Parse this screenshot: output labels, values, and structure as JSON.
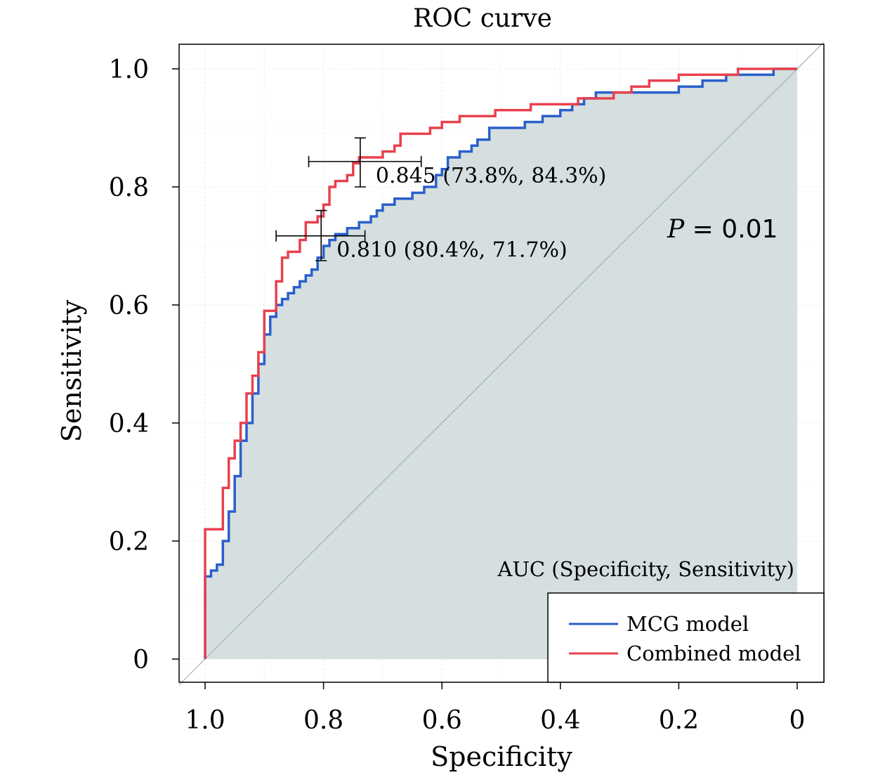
{
  "chart_data": {
    "type": "line",
    "title": "ROC curve",
    "xlabel": "Specificity",
    "ylabel": "Sensitivity",
    "x_reversed": true,
    "xlim": [
      1.0,
      0.0
    ],
    "ylim": [
      0.0,
      1.0
    ],
    "x_ticks": [
      {
        "value": 1.0,
        "label": "1.0"
      },
      {
        "value": 0.8,
        "label": "0.8"
      },
      {
        "value": 0.6,
        "label": "0.6"
      },
      {
        "value": 0.4,
        "label": "0.4"
      },
      {
        "value": 0.2,
        "label": "0.2"
      },
      {
        "value": 0.0,
        "label": "0"
      }
    ],
    "y_ticks": [
      {
        "value": 0.0,
        "label": "0"
      },
      {
        "value": 0.2,
        "label": "0.2"
      },
      {
        "value": 0.4,
        "label": "0.4"
      },
      {
        "value": 0.6,
        "label": "0.6"
      },
      {
        "value": 0.8,
        "label": "0.8"
      },
      {
        "value": 1.0,
        "label": "1.0"
      }
    ],
    "grid": true,
    "legend_position": "bottom-right",
    "auc_caption": "AUC (Specificity, Sensitivity)",
    "p_value": {
      "symbol": "P",
      "rest": " = 0.01"
    },
    "fill_color": "#d5dfdf",
    "diagonal_color": "#a0b0b0",
    "series": [
      {
        "name": "MCG model",
        "color": "#2a5fcc",
        "points": [
          [
            1.0,
            0.0
          ],
          [
            1.0,
            0.14
          ],
          [
            0.99,
            0.14
          ],
          [
            0.99,
            0.15
          ],
          [
            0.98,
            0.15
          ],
          [
            0.98,
            0.16
          ],
          [
            0.97,
            0.16
          ],
          [
            0.97,
            0.2
          ],
          [
            0.96,
            0.2
          ],
          [
            0.96,
            0.25
          ],
          [
            0.95,
            0.25
          ],
          [
            0.95,
            0.31
          ],
          [
            0.94,
            0.31
          ],
          [
            0.94,
            0.37
          ],
          [
            0.93,
            0.37
          ],
          [
            0.93,
            0.4
          ],
          [
            0.92,
            0.4
          ],
          [
            0.92,
            0.45
          ],
          [
            0.91,
            0.45
          ],
          [
            0.91,
            0.5
          ],
          [
            0.9,
            0.5
          ],
          [
            0.9,
            0.55
          ],
          [
            0.89,
            0.55
          ],
          [
            0.89,
            0.58
          ],
          [
            0.88,
            0.58
          ],
          [
            0.88,
            0.6
          ],
          [
            0.87,
            0.6
          ],
          [
            0.87,
            0.61
          ],
          [
            0.86,
            0.61
          ],
          [
            0.86,
            0.62
          ],
          [
            0.85,
            0.62
          ],
          [
            0.85,
            0.63
          ],
          [
            0.84,
            0.63
          ],
          [
            0.84,
            0.64
          ],
          [
            0.83,
            0.64
          ],
          [
            0.83,
            0.65
          ],
          [
            0.82,
            0.65
          ],
          [
            0.82,
            0.66
          ],
          [
            0.81,
            0.66
          ],
          [
            0.81,
            0.68
          ],
          [
            0.8,
            0.68
          ],
          [
            0.8,
            0.7
          ],
          [
            0.79,
            0.7
          ],
          [
            0.79,
            0.71
          ],
          [
            0.78,
            0.71
          ],
          [
            0.78,
            0.72
          ],
          [
            0.76,
            0.72
          ],
          [
            0.76,
            0.73
          ],
          [
            0.74,
            0.73
          ],
          [
            0.74,
            0.74
          ],
          [
            0.72,
            0.74
          ],
          [
            0.72,
            0.75
          ],
          [
            0.71,
            0.75
          ],
          [
            0.71,
            0.76
          ],
          [
            0.7,
            0.76
          ],
          [
            0.7,
            0.77
          ],
          [
            0.68,
            0.77
          ],
          [
            0.68,
            0.78
          ],
          [
            0.65,
            0.78
          ],
          [
            0.65,
            0.79
          ],
          [
            0.63,
            0.79
          ],
          [
            0.63,
            0.8
          ],
          [
            0.61,
            0.8
          ],
          [
            0.61,
            0.82
          ],
          [
            0.6,
            0.82
          ],
          [
            0.6,
            0.83
          ],
          [
            0.59,
            0.83
          ],
          [
            0.59,
            0.85
          ],
          [
            0.57,
            0.85
          ],
          [
            0.57,
            0.86
          ],
          [
            0.55,
            0.86
          ],
          [
            0.55,
            0.87
          ],
          [
            0.54,
            0.87
          ],
          [
            0.54,
            0.88
          ],
          [
            0.52,
            0.88
          ],
          [
            0.52,
            0.9
          ],
          [
            0.46,
            0.9
          ],
          [
            0.46,
            0.91
          ],
          [
            0.43,
            0.91
          ],
          [
            0.43,
            0.92
          ],
          [
            0.4,
            0.92
          ],
          [
            0.4,
            0.93
          ],
          [
            0.38,
            0.93
          ],
          [
            0.38,
            0.94
          ],
          [
            0.36,
            0.94
          ],
          [
            0.36,
            0.95
          ],
          [
            0.34,
            0.95
          ],
          [
            0.34,
            0.96
          ],
          [
            0.2,
            0.96
          ],
          [
            0.2,
            0.97
          ],
          [
            0.16,
            0.97
          ],
          [
            0.16,
            0.98
          ],
          [
            0.12,
            0.98
          ],
          [
            0.12,
            0.99
          ],
          [
            0.04,
            0.99
          ],
          [
            0.04,
            1.0
          ],
          [
            0.0,
            1.0
          ]
        ]
      },
      {
        "name": "Combined model",
        "color": "#e8414e",
        "points": [
          [
            1.0,
            0.0
          ],
          [
            1.0,
            0.22
          ],
          [
            0.97,
            0.22
          ],
          [
            0.97,
            0.29
          ],
          [
            0.96,
            0.29
          ],
          [
            0.96,
            0.34
          ],
          [
            0.95,
            0.34
          ],
          [
            0.95,
            0.37
          ],
          [
            0.94,
            0.37
          ],
          [
            0.94,
            0.4
          ],
          [
            0.93,
            0.4
          ],
          [
            0.93,
            0.45
          ],
          [
            0.92,
            0.45
          ],
          [
            0.92,
            0.48
          ],
          [
            0.91,
            0.48
          ],
          [
            0.91,
            0.52
          ],
          [
            0.9,
            0.52
          ],
          [
            0.9,
            0.59
          ],
          [
            0.88,
            0.59
          ],
          [
            0.88,
            0.64
          ],
          [
            0.87,
            0.64
          ],
          [
            0.87,
            0.68
          ],
          [
            0.86,
            0.68
          ],
          [
            0.86,
            0.69
          ],
          [
            0.84,
            0.69
          ],
          [
            0.84,
            0.71
          ],
          [
            0.83,
            0.71
          ],
          [
            0.83,
            0.74
          ],
          [
            0.81,
            0.74
          ],
          [
            0.81,
            0.75
          ],
          [
            0.8,
            0.75
          ],
          [
            0.8,
            0.77
          ],
          [
            0.79,
            0.77
          ],
          [
            0.79,
            0.8
          ],
          [
            0.78,
            0.8
          ],
          [
            0.78,
            0.81
          ],
          [
            0.76,
            0.81
          ],
          [
            0.76,
            0.82
          ],
          [
            0.75,
            0.82
          ],
          [
            0.75,
            0.84
          ],
          [
            0.74,
            0.84
          ],
          [
            0.74,
            0.85
          ],
          [
            0.7,
            0.85
          ],
          [
            0.7,
            0.86
          ],
          [
            0.68,
            0.86
          ],
          [
            0.68,
            0.87
          ],
          [
            0.67,
            0.87
          ],
          [
            0.67,
            0.89
          ],
          [
            0.62,
            0.89
          ],
          [
            0.62,
            0.9
          ],
          [
            0.6,
            0.9
          ],
          [
            0.6,
            0.91
          ],
          [
            0.57,
            0.91
          ],
          [
            0.57,
            0.92
          ],
          [
            0.51,
            0.92
          ],
          [
            0.51,
            0.93
          ],
          [
            0.45,
            0.93
          ],
          [
            0.45,
            0.94
          ],
          [
            0.37,
            0.94
          ],
          [
            0.37,
            0.95
          ],
          [
            0.31,
            0.95
          ],
          [
            0.31,
            0.96
          ],
          [
            0.28,
            0.96
          ],
          [
            0.28,
            0.97
          ],
          [
            0.25,
            0.97
          ],
          [
            0.25,
            0.98
          ],
          [
            0.2,
            0.98
          ],
          [
            0.2,
            0.99
          ],
          [
            0.1,
            0.99
          ],
          [
            0.1,
            1.0
          ],
          [
            0.0,
            1.0
          ]
        ]
      }
    ],
    "annotations": [
      {
        "series": "Combined model",
        "x": 0.738,
        "y": 0.843,
        "label": "0.845 (73.8%, 84.3%)",
        "x_err": [
          0.825,
          0.635
        ],
        "y_err": [
          0.8,
          0.883
        ]
      },
      {
        "series": "MCG model",
        "x": 0.804,
        "y": 0.717,
        "label": "0.810 (80.4%, 71.7%)",
        "x_err": [
          0.88,
          0.73
        ],
        "y_err": [
          0.675,
          0.76
        ]
      }
    ]
  }
}
